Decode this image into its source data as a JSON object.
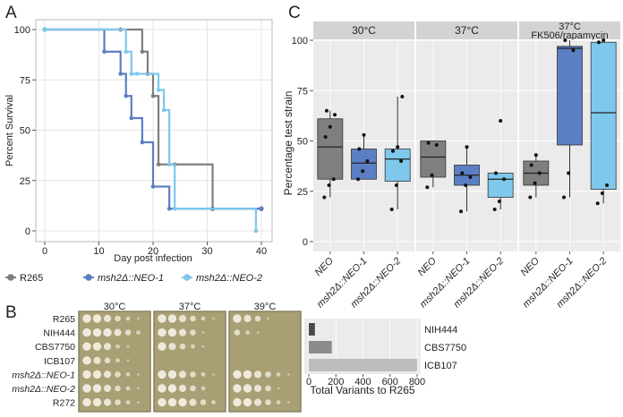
{
  "panels": {
    "a": "A",
    "b": "B",
    "c": "C"
  },
  "chart_data": [
    {
      "type": "line",
      "subtype": "kaplan-meier",
      "xlabel": "Day post infection",
      "ylabel": "Percent Survival",
      "xlim": [
        0,
        40
      ],
      "ylim": [
        0,
        100
      ],
      "xticks": [
        0,
        10,
        20,
        30,
        40
      ],
      "yticks": [
        0,
        25,
        50,
        75,
        100
      ],
      "series": [
        {
          "name": "R265",
          "label_prefix": "R265",
          "label_suffix": "",
          "color": "#7f7f7f",
          "x": [
            0,
            14,
            18,
            19,
            20,
            21,
            24,
            31,
            40
          ],
          "y": [
            100,
            100,
            89,
            78,
            67,
            33,
            33,
            11,
            11
          ],
          "censor": [
            [
              0,
              100
            ],
            [
              31,
              11
            ],
            [
              40,
              11
            ]
          ]
        },
        {
          "name": "msh2Δ::NEO-1",
          "label_prefix": "msh2Δ::",
          "label_suffix": "NEO-1",
          "color": "#5b7fc4",
          "x": [
            0,
            11,
            14,
            15,
            16,
            18,
            20,
            23,
            40
          ],
          "y": [
            100,
            89,
            78,
            67,
            56,
            44,
            22,
            11,
            11
          ],
          "censor": [
            [
              0,
              100
            ],
            [
              40,
              11
            ]
          ]
        },
        {
          "name": "msh2Δ::NEO-2",
          "label_prefix": "msh2Δ::",
          "label_suffix": "NEO-2",
          "color": "#7ec8ec",
          "x": [
            0,
            15,
            16,
            17,
            21,
            22,
            23,
            24,
            39
          ],
          "y": [
            100,
            89,
            78,
            78,
            70,
            60,
            33,
            11,
            0
          ],
          "censor": [
            [
              0,
              100
            ]
          ]
        }
      ]
    },
    {
      "type": "bar",
      "orientation": "horizontal",
      "categories": [
        "NIH444",
        "CBS7750",
        "ICB107"
      ],
      "values": [
        45,
        170,
        800
      ],
      "colors": [
        "#4a4a4a",
        "#8c8c8c",
        "#bdbdbd"
      ],
      "xlabel": "Total Variants to R265",
      "xlim": [
        0,
        800
      ],
      "xticks": [
        0,
        200,
        400,
        600,
        800
      ]
    },
    {
      "type": "box",
      "ylabel": "Percentage test strain",
      "ylim": [
        0,
        100
      ],
      "yticks": [
        0,
        25,
        50,
        75,
        100
      ],
      "facets": [
        {
          "title": "30°C",
          "title2": "",
          "groups": [
            {
              "label_prefix": "",
              "label_suffix": "NEO",
              "color": "#7f7f7f",
              "q1": 31,
              "median": 47,
              "q3": 61,
              "whisker_low": 22,
              "whisker_high": 65,
              "points": [
                22,
                28,
                31,
                52,
                57,
                63,
                65
              ]
            },
            {
              "label_prefix": "msh2Δ::",
              "label_suffix": "NEO-1",
              "color": "#5b7fc4",
              "q1": 31,
              "median": 39,
              "q3": 46,
              "whisker_low": 31,
              "whisker_high": 53,
              "points": [
                31,
                35,
                40,
                46,
                53
              ]
            },
            {
              "label_prefix": "msh2Δ::",
              "label_suffix": "NEO-2",
              "color": "#7ec8ec",
              "q1": 30,
              "median": 41,
              "q3": 46,
              "whisker_low": 16,
              "whisker_high": 72,
              "points": [
                16,
                28,
                40,
                45,
                47,
                72
              ]
            }
          ]
        },
        {
          "title": "37°C",
          "title2": "",
          "groups": [
            {
              "label_prefix": "",
              "label_suffix": "NEO",
              "color": "#7f7f7f",
              "q1": 32,
              "median": 42,
              "q3": 50,
              "whisker_low": 27,
              "whisker_high": 50,
              "points": [
                27,
                33,
                48,
                49
              ]
            },
            {
              "label_prefix": "msh2Δ::",
              "label_suffix": "NEO-1",
              "color": "#5b7fc4",
              "q1": 28,
              "median": 33,
              "q3": 38,
              "whisker_low": 15,
              "whisker_high": 47,
              "points": [
                15,
                28,
                32,
                34,
                47
              ]
            },
            {
              "label_prefix": "msh2Δ::",
              "label_suffix": "NEO-2",
              "color": "#7ec8ec",
              "q1": 22,
              "median": 31,
              "q3": 34,
              "whisker_low": 16,
              "whisker_high": 34,
              "points": [
                16,
                20,
                31,
                34,
                60
              ]
            }
          ]
        },
        {
          "title": "37°C",
          "title2": "FK506/rapamycin",
          "groups": [
            {
              "label_prefix": "",
              "label_suffix": "NEO",
              "color": "#7f7f7f",
              "q1": 28,
              "median": 34,
              "q3": 40,
              "whisker_low": 22,
              "whisker_high": 43,
              "points": [
                22,
                29,
                34,
                38,
                43
              ]
            },
            {
              "label_prefix": "msh2Δ::",
              "label_suffix": "NEO-1",
              "color": "#5b7fc4",
              "q1": 48,
              "median": 96,
              "q3": 97,
              "whisker_low": 22,
              "whisker_high": 100,
              "points": [
                22,
                34,
                95,
                100
              ]
            },
            {
              "label_prefix": "msh2Δ::",
              "label_suffix": "NEO-2",
              "color": "#7ec8ec",
              "q1": 26,
              "median": 64,
              "q3": 99,
              "whisker_low": 19,
              "whisker_high": 100,
              "points": [
                19,
                24,
                28,
                99,
                100
              ]
            }
          ]
        }
      ]
    }
  ],
  "plates": {
    "temperatures": [
      "30°C",
      "37°C",
      "39°C"
    ],
    "strains": [
      {
        "prefix": "",
        "suffix": "R265"
      },
      {
        "prefix": "",
        "suffix": "NIH444"
      },
      {
        "prefix": "",
        "suffix": "CBS7750"
      },
      {
        "prefix": "",
        "suffix": "ICB107"
      },
      {
        "prefix": "msh2Δ::",
        "suffix": "NEO-1"
      },
      {
        "prefix": "msh2Δ::",
        "suffix": "NEO-2"
      },
      {
        "prefix": "",
        "suffix": "R272"
      }
    ],
    "growth": [
      [
        [
          5,
          5,
          4,
          3,
          2,
          1
        ],
        [
          5,
          5,
          5,
          4,
          3,
          2
        ],
        [
          5,
          5,
          4,
          2,
          1,
          0
        ],
        [
          5,
          4,
          3,
          2,
          1,
          0
        ],
        [
          5,
          5,
          4,
          3,
          2,
          1
        ],
        [
          5,
          5,
          4,
          3,
          2,
          1
        ],
        [
          5,
          5,
          4,
          3,
          2,
          1
        ]
      ],
      [
        [
          5,
          5,
          4,
          3,
          2,
          1
        ],
        [
          5,
          5,
          4,
          3,
          1,
          0
        ],
        [
          5,
          4,
          3,
          2,
          1,
          0
        ],
        [
          0,
          0,
          0,
          0,
          0,
          0
        ],
        [
          5,
          5,
          4,
          3,
          2,
          1
        ],
        [
          5,
          5,
          4,
          3,
          2,
          0
        ],
        [
          5,
          5,
          5,
          4,
          3,
          2
        ]
      ],
      [
        [
          5,
          4,
          3,
          1,
          0,
          0
        ],
        [
          3,
          2,
          1,
          0,
          0,
          0
        ],
        [
          0,
          0,
          0,
          0,
          0,
          0
        ],
        [
          0,
          0,
          0,
          0,
          0,
          0
        ],
        [
          5,
          5,
          4,
          3,
          2,
          1
        ],
        [
          5,
          5,
          4,
          3,
          1,
          0
        ],
        [
          5,
          5,
          4,
          3,
          2,
          1
        ]
      ]
    ]
  },
  "colors": {
    "plate": "#a89f74",
    "plate_dark": "#8a8260",
    "colony": "#efeadc",
    "panel_bg": "#ebebeb",
    "strip": "#d3d3d3",
    "grid": "#ffffff"
  }
}
